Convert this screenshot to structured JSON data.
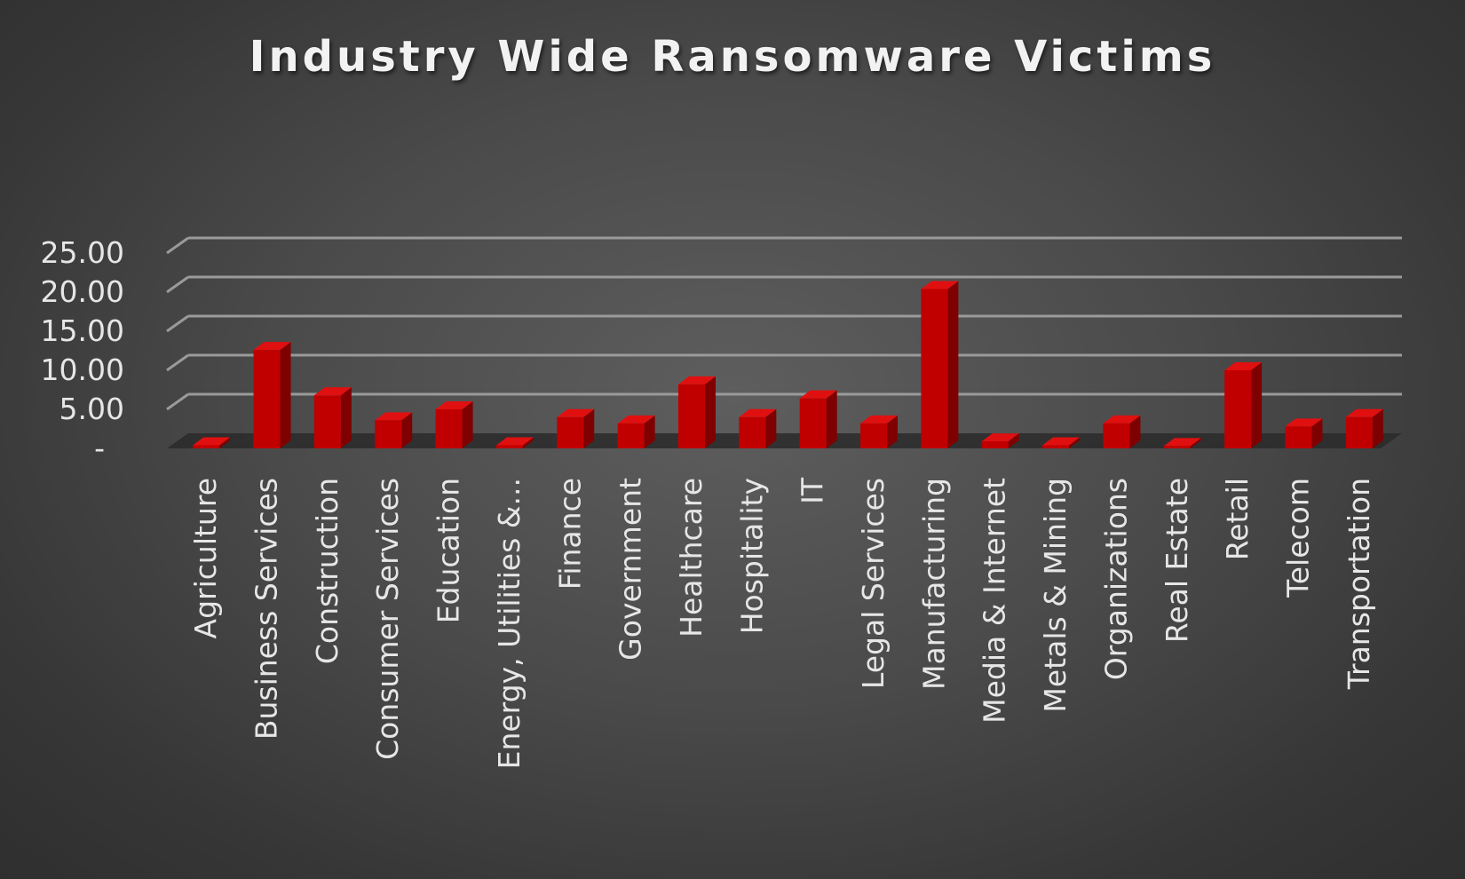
{
  "chart_data": {
    "type": "bar",
    "title": "Industry Wide Ransomware Victims",
    "xlabel": "",
    "ylabel": "",
    "categories": [
      "Agriculture",
      "Business Services",
      "Construction",
      "Consumer Services",
      "Education",
      "Energy, Utilities &...",
      "Finance",
      "Government",
      "Healthcare",
      "Hospitality",
      "IT",
      "Legal Services",
      "Manufacturing",
      "Media & Internet",
      "Metals & Mining",
      "Organizations",
      "Real Estate",
      "Retail",
      "Telecom",
      "Transportation"
    ],
    "values": [
      0.4,
      12.6,
      6.8,
      3.6,
      5.0,
      0.4,
      4.0,
      3.2,
      8.2,
      4.0,
      6.4,
      3.2,
      20.4,
      0.9,
      0.4,
      3.2,
      0.3,
      10.0,
      2.8,
      4.0
    ],
    "ylim": [
      0,
      25
    ],
    "yticks": [
      0,
      5,
      10,
      15,
      20,
      25
    ],
    "ytick_labels": [
      "-",
      "5.00",
      "10.00",
      "15.00",
      "20.00",
      "25.00"
    ],
    "grid": true,
    "bar_color": "#c00000",
    "bar_side_color": "#7f0000",
    "bar_top_color": "#e01010"
  }
}
